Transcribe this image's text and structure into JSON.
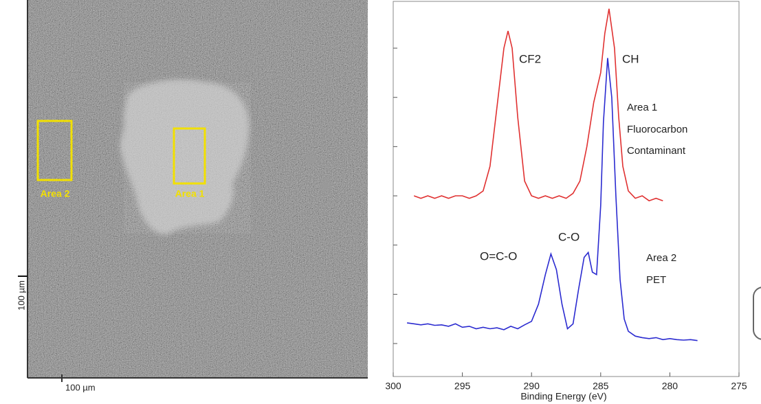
{
  "image": {
    "box_labels": [
      "Area 2",
      "Area 1"
    ],
    "scale_labels": [
      "100 µm",
      "100 µm"
    ]
  },
  "chart_data": {
    "type": "line",
    "x_label": "Binding Energy (eV)",
    "xlim": [
      300,
      275
    ],
    "xticks": [
      300,
      295,
      290,
      285,
      280,
      275
    ],
    "ylim": [
      0.33,
      7.95
    ],
    "yticks": [
      1,
      2,
      3,
      4,
      5,
      6,
      7
    ],
    "annotations": [
      "CF2",
      "CH",
      "Area 1",
      "Fluorocarbon",
      "Contaminant",
      "O=C-O",
      "C-O",
      "Area 2",
      "PET"
    ],
    "series": [
      {
        "color": "#e03030",
        "x": [
          298.5,
          298,
          297.5,
          297,
          296.5,
          296,
          295.5,
          295,
          294.5,
          294,
          293.5,
          293,
          292.5,
          292,
          291.7,
          291.4,
          291,
          290.5,
          290,
          289.5,
          289,
          288.5,
          288,
          287.5,
          287,
          286.5,
          286,
          285.5,
          285,
          284.7,
          284.4,
          284,
          283.7,
          283.4,
          283,
          282.5,
          282,
          281.5,
          281,
          280.5
        ],
        "values": [
          4.0,
          3.95,
          4.0,
          3.95,
          4.0,
          3.95,
          4.0,
          4.0,
          3.95,
          4.0,
          4.1,
          4.6,
          5.8,
          7.0,
          7.35,
          7.0,
          5.6,
          4.3,
          4.0,
          3.95,
          4.0,
          3.95,
          4.0,
          3.95,
          4.05,
          4.3,
          5.0,
          5.9,
          6.5,
          7.3,
          7.8,
          7.0,
          5.6,
          4.6,
          4.1,
          3.95,
          4.0,
          3.9,
          3.95,
          3.9
        ]
      },
      {
        "color": "#2a2ad0",
        "x": [
          299,
          298.5,
          298,
          297.5,
          297,
          296.5,
          296,
          295.5,
          295,
          294.5,
          294,
          293.5,
          293,
          292.5,
          292,
          291.5,
          291,
          290.5,
          290,
          289.5,
          289,
          288.6,
          288.2,
          287.8,
          287.4,
          287,
          286.6,
          286.2,
          285.9,
          285.6,
          285.3,
          285,
          284.8,
          284.5,
          284.2,
          283.9,
          283.6,
          283.3,
          283,
          282.5,
          282,
          281.5,
          281,
          280.5,
          280,
          279.5,
          279,
          278.5,
          278
        ],
        "values": [
          1.42,
          1.4,
          1.38,
          1.4,
          1.37,
          1.38,
          1.35,
          1.4,
          1.33,
          1.35,
          1.3,
          1.33,
          1.3,
          1.32,
          1.28,
          1.35,
          1.3,
          1.38,
          1.45,
          1.8,
          2.4,
          2.82,
          2.5,
          1.8,
          1.3,
          1.4,
          2.1,
          2.75,
          2.85,
          2.45,
          2.4,
          3.8,
          5.5,
          6.8,
          6.0,
          4.0,
          2.3,
          1.5,
          1.25,
          1.15,
          1.12,
          1.1,
          1.12,
          1.08,
          1.1,
          1.08,
          1.07,
          1.08,
          1.06
        ]
      }
    ]
  }
}
